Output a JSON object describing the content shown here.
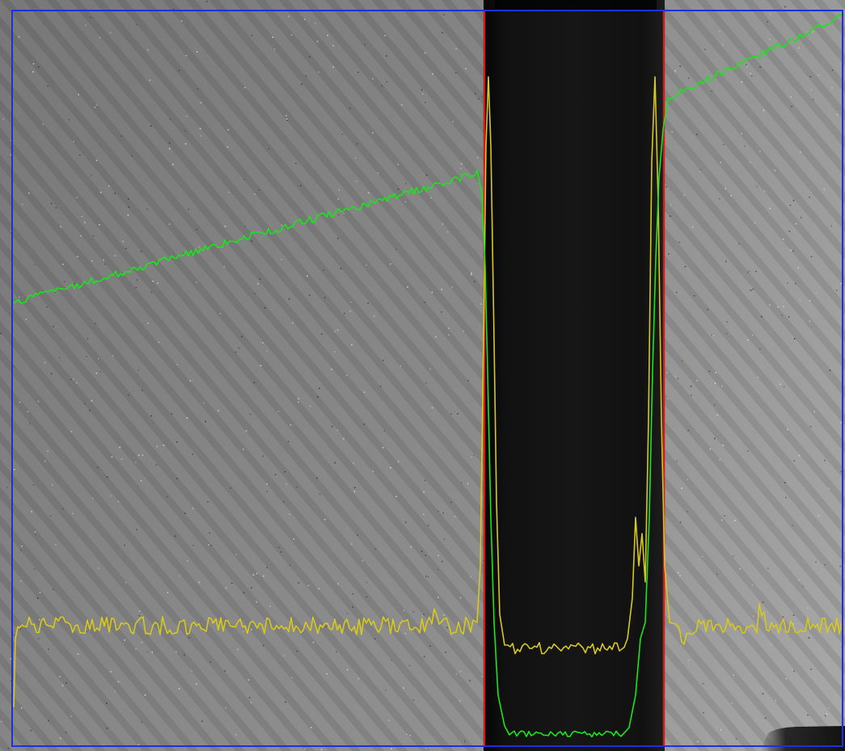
{
  "image": {
    "kind": "grayscale inspection frame with intensity profile overlays",
    "colors": {
      "background_gray": "#8a8a8a",
      "dark_band": "#0d0d0d",
      "roi_border": "#1f2fe0",
      "edge_marker": "#d11c1c",
      "profile_primary": "#19e619",
      "profile_secondary": "#d6c81c"
    },
    "overlays": [
      {
        "name": "roi-rectangle",
        "color": "roi_border"
      },
      {
        "name": "left-edge-marker",
        "color": "edge_marker"
      },
      {
        "name": "right-edge-marker",
        "color": "edge_marker"
      },
      {
        "name": "green-profile",
        "color": "profile_primary"
      },
      {
        "name": "yellow-profile",
        "color": "profile_secondary"
      }
    ]
  }
}
